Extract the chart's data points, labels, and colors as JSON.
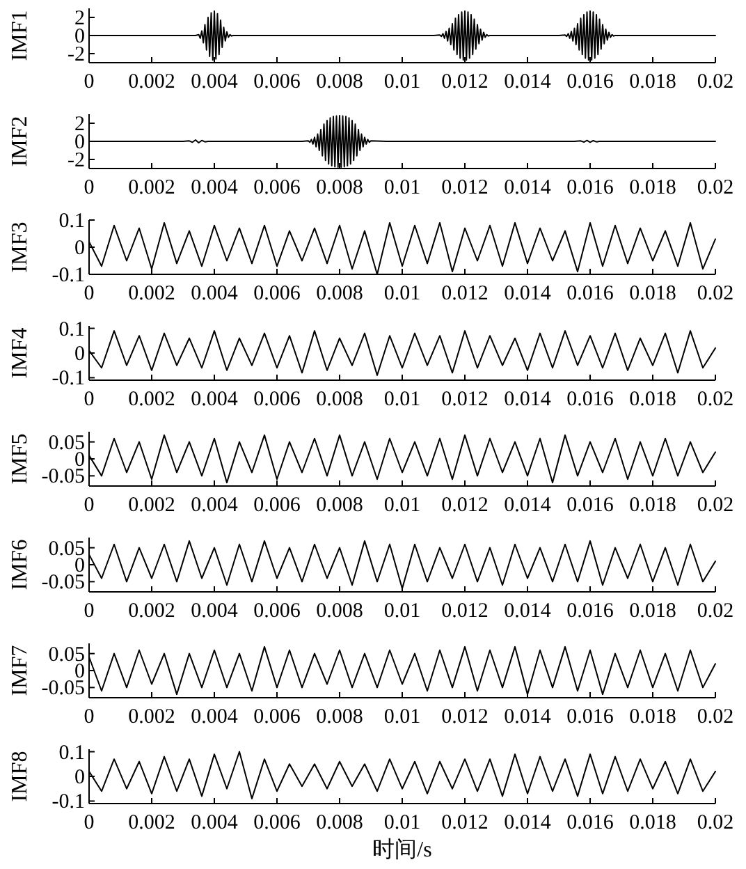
{
  "chart_data": [
    {
      "type": "line",
      "ylabel": "IMF1",
      "xlim": [
        0,
        0.02
      ],
      "xticks": [
        0,
        0.002,
        0.004,
        0.006,
        0.008,
        0.01,
        0.012,
        0.014,
        0.016,
        0.018,
        0.02
      ],
      "ylim": [
        -3,
        3
      ],
      "yticks": [
        -2,
        0,
        2
      ],
      "x": [
        0,
        0.001,
        0.002,
        0.003,
        0.0034,
        0.0035,
        0.00355,
        0.0036,
        0.00365,
        0.0037,
        0.00375,
        0.0038,
        0.00385,
        0.0039,
        0.00395,
        0.004,
        0.00405,
        0.0041,
        0.00415,
        0.0042,
        0.00425,
        0.0043,
        0.00435,
        0.0044,
        0.00445,
        0.0045,
        0.00455,
        0.0046,
        0.0048,
        0.006,
        0.008,
        0.01,
        0.011,
        0.0112,
        0.01125,
        0.0113,
        0.01135,
        0.0114,
        0.01145,
        0.0115,
        0.01155,
        0.0116,
        0.01165,
        0.0117,
        0.01175,
        0.0118,
        0.01185,
        0.0119,
        0.01195,
        0.012,
        0.01205,
        0.0121,
        0.01215,
        0.0122,
        0.01225,
        0.0123,
        0.01235,
        0.0124,
        0.01245,
        0.0125,
        0.01255,
        0.0126,
        0.01265,
        0.0127,
        0.01275,
        0.0128,
        0.013,
        0.014,
        0.015,
        0.0152,
        0.01525,
        0.0153,
        0.01535,
        0.0154,
        0.01545,
        0.0155,
        0.01555,
        0.0156,
        0.01565,
        0.0157,
        0.01575,
        0.0158,
        0.01585,
        0.0159,
        0.01595,
        0.016,
        0.01605,
        0.0161,
        0.01615,
        0.0162,
        0.01625,
        0.0163,
        0.01635,
        0.0164,
        0.01645,
        0.0165,
        0.01655,
        0.0166,
        0.01665,
        0.0167,
        0.01675,
        0.0168,
        0.017,
        0.018,
        0.019,
        0.02
      ],
      "series": [
        {
          "color": "#000000",
          "values": [
            0,
            0,
            0,
            0,
            0,
            0.1,
            -0.3,
            0.5,
            -0.8,
            1.2,
            -1.6,
            2.0,
            -2.3,
            2.5,
            -2.7,
            2.7,
            -2.6,
            2.4,
            -2.1,
            1.7,
            -1.3,
            0.9,
            -0.6,
            0.4,
            -0.2,
            0.1,
            -0.05,
            0,
            0,
            0,
            0,
            0,
            0,
            0.05,
            -0.1,
            0.2,
            -0.3,
            0.45,
            -0.6,
            0.8,
            -1.0,
            1.3,
            -1.6,
            1.9,
            -2.1,
            2.3,
            -2.5,
            2.6,
            -2.7,
            2.7,
            -2.7,
            2.6,
            -2.5,
            2.3,
            -2.1,
            1.8,
            -1.5,
            1.2,
            -0.9,
            0.7,
            -0.5,
            0.35,
            -0.2,
            0.1,
            -0.05,
            0,
            0,
            0,
            0,
            0.05,
            -0.1,
            0.2,
            -0.3,
            0.45,
            -0.6,
            0.8,
            -1.0,
            1.3,
            -1.6,
            1.9,
            -2.1,
            2.3,
            -2.5,
            2.6,
            -2.7,
            2.7,
            -2.7,
            2.6,
            -2.5,
            2.3,
            -2.1,
            1.8,
            -1.5,
            1.2,
            -0.9,
            0.7,
            -0.5,
            0.35,
            -0.2,
            0.1,
            -0.05,
            0,
            0,
            0,
            0,
            0
          ]
        }
      ]
    },
    {
      "type": "line",
      "ylabel": "IMF2",
      "xlim": [
        0,
        0.02
      ],
      "xticks": [
        0,
        0.002,
        0.004,
        0.006,
        0.008,
        0.01,
        0.012,
        0.014,
        0.016,
        0.018,
        0.02
      ],
      "ylim": [
        -3,
        3
      ],
      "yticks": [
        -2,
        0,
        2
      ],
      "x": [
        0,
        0.003,
        0.0032,
        0.0033,
        0.0034,
        0.0035,
        0.0036,
        0.0037,
        0.0038,
        0.004,
        0.006,
        0.0068,
        0.007,
        0.00705,
        0.0071,
        0.00715,
        0.0072,
        0.00725,
        0.0073,
        0.00735,
        0.0074,
        0.00745,
        0.0075,
        0.00755,
        0.0076,
        0.00765,
        0.0077,
        0.00775,
        0.0078,
        0.00785,
        0.0079,
        0.00795,
        0.008,
        0.00805,
        0.0081,
        0.00815,
        0.0082,
        0.00825,
        0.0083,
        0.00835,
        0.0084,
        0.00845,
        0.0085,
        0.00855,
        0.0086,
        0.00865,
        0.0087,
        0.00875,
        0.0088,
        0.00885,
        0.0089,
        0.00895,
        0.009,
        0.0095,
        0.012,
        0.0155,
        0.0157,
        0.0158,
        0.0159,
        0.016,
        0.0161,
        0.0162,
        0.0163,
        0.017,
        0.02
      ],
      "series": [
        {
          "color": "#000000",
          "values": [
            0,
            0,
            0.05,
            -0.1,
            0.15,
            -0.15,
            0.1,
            -0.05,
            0,
            0,
            0,
            0,
            0.05,
            -0.1,
            0.2,
            -0.3,
            0.45,
            -0.6,
            0.8,
            -1.0,
            1.3,
            -1.6,
            1.9,
            -2.1,
            2.3,
            -2.5,
            2.6,
            -2.7,
            2.75,
            -2.8,
            2.8,
            -2.85,
            2.85,
            -2.85,
            2.8,
            -2.8,
            2.75,
            -2.7,
            2.6,
            -2.5,
            2.3,
            -2.1,
            1.9,
            -1.6,
            1.3,
            -1.0,
            0.8,
            -0.6,
            0.45,
            -0.3,
            0.2,
            -0.1,
            0.05,
            0,
            0,
            0,
            0.05,
            -0.08,
            0.1,
            -0.1,
            0.08,
            -0.05,
            0,
            0,
            0
          ]
        }
      ]
    },
    {
      "type": "line",
      "ylabel": "IMF3",
      "xlim": [
        0,
        0.02
      ],
      "xticks": [
        0,
        0.002,
        0.004,
        0.006,
        0.008,
        0.01,
        0.012,
        0.014,
        0.016,
        0.018,
        0.02
      ],
      "ylim": [
        -0.1,
        0.1
      ],
      "yticks": [
        -0.1,
        0,
        0.1
      ],
      "x": [
        0,
        0.0004,
        0.0008,
        0.0012,
        0.0016,
        0.002,
        0.0024,
        0.0028,
        0.0032,
        0.0036,
        0.004,
        0.0044,
        0.0048,
        0.0052,
        0.0056,
        0.006,
        0.0064,
        0.0068,
        0.0072,
        0.0076,
        0.008,
        0.0084,
        0.0088,
        0.0092,
        0.0096,
        0.01,
        0.0104,
        0.0108,
        0.0112,
        0.0116,
        0.012,
        0.0124,
        0.0128,
        0.0132,
        0.0136,
        0.014,
        0.0144,
        0.0148,
        0.0152,
        0.0156,
        0.016,
        0.0164,
        0.0168,
        0.0172,
        0.0176,
        0.018,
        0.0184,
        0.0188,
        0.0192,
        0.0196,
        0.02
      ],
      "series": [
        {
          "color": "#000000",
          "values": [
            0.02,
            -0.07,
            0.08,
            -0.05,
            0.07,
            -0.08,
            0.09,
            -0.06,
            0.06,
            -0.07,
            0.08,
            -0.05,
            0.07,
            -0.06,
            0.08,
            -0.07,
            0.06,
            -0.05,
            0.07,
            -0.06,
            0.08,
            -0.08,
            0.06,
            -0.1,
            0.09,
            -0.07,
            0.08,
            -0.06,
            0.09,
            -0.09,
            0.07,
            -0.05,
            0.08,
            -0.07,
            0.09,
            -0.06,
            0.07,
            -0.05,
            0.06,
            -0.09,
            0.09,
            -0.07,
            0.08,
            -0.06,
            0.07,
            -0.05,
            0.06,
            -0.07,
            0.09,
            -0.08,
            0.03
          ]
        }
      ]
    },
    {
      "type": "line",
      "ylabel": "IMF4",
      "xlim": [
        0,
        0.02
      ],
      "xticks": [
        0,
        0.002,
        0.004,
        0.006,
        0.008,
        0.01,
        0.012,
        0.014,
        0.016,
        0.018,
        0.02
      ],
      "ylim": [
        -0.11,
        0.11
      ],
      "yticks": [
        -0.1,
        0,
        0.1
      ],
      "x": [
        0,
        0.0004,
        0.0008,
        0.0012,
        0.0016,
        0.002,
        0.0024,
        0.0028,
        0.0032,
        0.0036,
        0.004,
        0.0044,
        0.0048,
        0.0052,
        0.0056,
        0.006,
        0.0064,
        0.0068,
        0.0072,
        0.0076,
        0.008,
        0.0084,
        0.0088,
        0.0092,
        0.0096,
        0.01,
        0.0104,
        0.0108,
        0.0112,
        0.0116,
        0.012,
        0.0124,
        0.0128,
        0.0132,
        0.0136,
        0.014,
        0.0144,
        0.0148,
        0.0152,
        0.0156,
        0.016,
        0.0164,
        0.0168,
        0.0172,
        0.0176,
        0.018,
        0.0184,
        0.0188,
        0.0192,
        0.0196,
        0.02
      ],
      "series": [
        {
          "color": "#000000",
          "values": [
            0.01,
            -0.06,
            0.09,
            -0.05,
            0.07,
            -0.07,
            0.08,
            -0.05,
            0.06,
            -0.06,
            0.09,
            -0.07,
            0.06,
            -0.05,
            0.08,
            -0.06,
            0.07,
            -0.08,
            0.09,
            -0.07,
            0.06,
            -0.05,
            0.08,
            -0.09,
            0.07,
            -0.06,
            0.08,
            -0.05,
            0.07,
            -0.08,
            0.09,
            -0.06,
            0.07,
            -0.05,
            0.06,
            -0.07,
            0.08,
            -0.06,
            0.09,
            -0.05,
            0.07,
            -0.06,
            0.08,
            -0.07,
            0.06,
            -0.05,
            0.08,
            -0.08,
            0.09,
            -0.06,
            0.02
          ]
        }
      ]
    },
    {
      "type": "line",
      "ylabel": "IMF5",
      "xlim": [
        0,
        0.02
      ],
      "xticks": [
        0,
        0.002,
        0.004,
        0.006,
        0.008,
        0.01,
        0.012,
        0.014,
        0.016,
        0.018,
        0.02
      ],
      "ylim": [
        -0.08,
        0.08
      ],
      "yticks": [
        -0.05,
        0,
        0.05
      ],
      "x": [
        0,
        0.0004,
        0.0008,
        0.0012,
        0.0016,
        0.002,
        0.0024,
        0.0028,
        0.0032,
        0.0036,
        0.004,
        0.0044,
        0.0048,
        0.0052,
        0.0056,
        0.006,
        0.0064,
        0.0068,
        0.0072,
        0.0076,
        0.008,
        0.0084,
        0.0088,
        0.0092,
        0.0096,
        0.01,
        0.0104,
        0.0108,
        0.0112,
        0.0116,
        0.012,
        0.0124,
        0.0128,
        0.0132,
        0.0136,
        0.014,
        0.0144,
        0.0148,
        0.0152,
        0.0156,
        0.016,
        0.0164,
        0.0168,
        0.0172,
        0.0176,
        0.018,
        0.0184,
        0.0188,
        0.0192,
        0.0196,
        0.02
      ],
      "series": [
        {
          "color": "#000000",
          "values": [
            0.01,
            -0.05,
            0.06,
            -0.04,
            0.05,
            -0.06,
            0.07,
            -0.04,
            0.05,
            -0.05,
            0.06,
            -0.07,
            0.05,
            -0.04,
            0.07,
            -0.06,
            0.05,
            -0.04,
            0.06,
            -0.05,
            0.07,
            -0.05,
            0.05,
            -0.06,
            0.06,
            -0.04,
            0.05,
            -0.05,
            0.06,
            -0.06,
            0.07,
            -0.05,
            0.06,
            -0.04,
            0.05,
            -0.05,
            0.06,
            -0.07,
            0.07,
            -0.05,
            0.05,
            -0.04,
            0.06,
            -0.06,
            0.05,
            -0.05,
            0.06,
            -0.05,
            0.05,
            -0.04,
            0.02
          ]
        }
      ]
    },
    {
      "type": "line",
      "ylabel": "IMF6",
      "xlim": [
        0,
        0.02
      ],
      "xticks": [
        0,
        0.002,
        0.004,
        0.006,
        0.008,
        0.01,
        0.012,
        0.014,
        0.016,
        0.018,
        0.02
      ],
      "ylim": [
        -0.08,
        0.08
      ],
      "yticks": [
        -0.05,
        0,
        0.05
      ],
      "x": [
        0,
        0.0004,
        0.0008,
        0.0012,
        0.0016,
        0.002,
        0.0024,
        0.0028,
        0.0032,
        0.0036,
        0.004,
        0.0044,
        0.0048,
        0.0052,
        0.0056,
        0.006,
        0.0064,
        0.0068,
        0.0072,
        0.0076,
        0.008,
        0.0084,
        0.0088,
        0.0092,
        0.0096,
        0.01,
        0.0104,
        0.0108,
        0.0112,
        0.0116,
        0.012,
        0.0124,
        0.0128,
        0.0132,
        0.0136,
        0.014,
        0.0144,
        0.0148,
        0.0152,
        0.0156,
        0.016,
        0.0164,
        0.0168,
        0.0172,
        0.0176,
        0.018,
        0.0184,
        0.0188,
        0.0192,
        0.0196,
        0.02
      ],
      "series": [
        {
          "color": "#000000",
          "values": [
            0.03,
            -0.04,
            0.06,
            -0.05,
            0.05,
            -0.04,
            0.06,
            -0.05,
            0.07,
            -0.04,
            0.05,
            -0.06,
            0.06,
            -0.05,
            0.07,
            -0.04,
            0.05,
            -0.05,
            0.06,
            -0.04,
            0.05,
            -0.06,
            0.07,
            -0.05,
            0.06,
            -0.07,
            0.06,
            -0.05,
            0.05,
            -0.04,
            0.06,
            -0.05,
            0.05,
            -0.06,
            0.06,
            -0.04,
            0.05,
            -0.05,
            0.06,
            -0.05,
            0.07,
            -0.06,
            0.05,
            -0.04,
            0.06,
            -0.05,
            0.05,
            -0.06,
            0.06,
            -0.05,
            0.01
          ]
        }
      ]
    },
    {
      "type": "line",
      "ylabel": "IMF7",
      "xlim": [
        0,
        0.02
      ],
      "xticks": [
        0,
        0.002,
        0.004,
        0.006,
        0.008,
        0.01,
        0.012,
        0.014,
        0.016,
        0.018,
        0.02
      ],
      "ylim": [
        -0.08,
        0.08
      ],
      "yticks": [
        -0.05,
        0,
        0.05
      ],
      "x": [
        0,
        0.0004,
        0.0008,
        0.0012,
        0.0016,
        0.002,
        0.0024,
        0.0028,
        0.0032,
        0.0036,
        0.004,
        0.0044,
        0.0048,
        0.0052,
        0.0056,
        0.006,
        0.0064,
        0.0068,
        0.0072,
        0.0076,
        0.008,
        0.0084,
        0.0088,
        0.0092,
        0.0096,
        0.01,
        0.0104,
        0.0108,
        0.0112,
        0.0116,
        0.012,
        0.0124,
        0.0128,
        0.0132,
        0.0136,
        0.014,
        0.0144,
        0.0148,
        0.0152,
        0.0156,
        0.016,
        0.0164,
        0.0168,
        0.0172,
        0.0176,
        0.018,
        0.0184,
        0.0188,
        0.0192,
        0.0196,
        0.02
      ],
      "series": [
        {
          "color": "#000000",
          "values": [
            0.04,
            -0.06,
            0.05,
            -0.05,
            0.06,
            -0.04,
            0.05,
            -0.07,
            0.05,
            -0.05,
            0.06,
            -0.05,
            0.05,
            -0.06,
            0.07,
            -0.05,
            0.06,
            -0.05,
            0.05,
            -0.04,
            0.06,
            -0.05,
            0.05,
            -0.05,
            0.06,
            -0.04,
            0.05,
            -0.06,
            0.06,
            -0.05,
            0.07,
            -0.06,
            0.06,
            -0.05,
            0.07,
            -0.07,
            0.06,
            -0.05,
            0.07,
            -0.06,
            0.06,
            -0.07,
            0.05,
            -0.05,
            0.06,
            -0.05,
            0.05,
            -0.06,
            0.06,
            -0.05,
            0.02
          ]
        }
      ]
    },
    {
      "type": "line",
      "ylabel": "IMF8",
      "xlabel": "时间/s",
      "xlim": [
        0,
        0.02
      ],
      "xticks": [
        0,
        0.002,
        0.004,
        0.006,
        0.008,
        0.01,
        0.012,
        0.014,
        0.016,
        0.018,
        0.02
      ],
      "ylim": [
        -0.11,
        0.11
      ],
      "yticks": [
        -0.1,
        0,
        0.1
      ],
      "x": [
        0,
        0.0004,
        0.0008,
        0.0012,
        0.0016,
        0.002,
        0.0024,
        0.0028,
        0.0032,
        0.0036,
        0.004,
        0.0044,
        0.0048,
        0.0052,
        0.0056,
        0.006,
        0.0064,
        0.0068,
        0.0072,
        0.0076,
        0.008,
        0.0084,
        0.0088,
        0.0092,
        0.0096,
        0.01,
        0.0104,
        0.0108,
        0.0112,
        0.0116,
        0.012,
        0.0124,
        0.0128,
        0.0132,
        0.0136,
        0.014,
        0.0144,
        0.0148,
        0.0152,
        0.0156,
        0.016,
        0.0164,
        0.0168,
        0.0172,
        0.0176,
        0.018,
        0.0184,
        0.0188,
        0.0192,
        0.0196,
        0.02
      ],
      "series": [
        {
          "color": "#000000",
          "values": [
            0.02,
            -0.06,
            0.07,
            -0.05,
            0.06,
            -0.07,
            0.08,
            -0.06,
            0.07,
            -0.08,
            0.09,
            -0.05,
            0.1,
            -0.09,
            0.07,
            -0.06,
            0.05,
            -0.04,
            0.05,
            -0.05,
            0.06,
            -0.04,
            0.05,
            -0.06,
            0.07,
            -0.05,
            0.06,
            -0.07,
            0.06,
            -0.05,
            0.07,
            -0.06,
            0.07,
            -0.08,
            0.09,
            -0.07,
            0.08,
            -0.06,
            0.07,
            -0.08,
            0.09,
            -0.07,
            0.08,
            -0.06,
            0.07,
            -0.05,
            0.06,
            -0.07,
            0.07,
            -0.06,
            0.02
          ]
        }
      ]
    }
  ]
}
